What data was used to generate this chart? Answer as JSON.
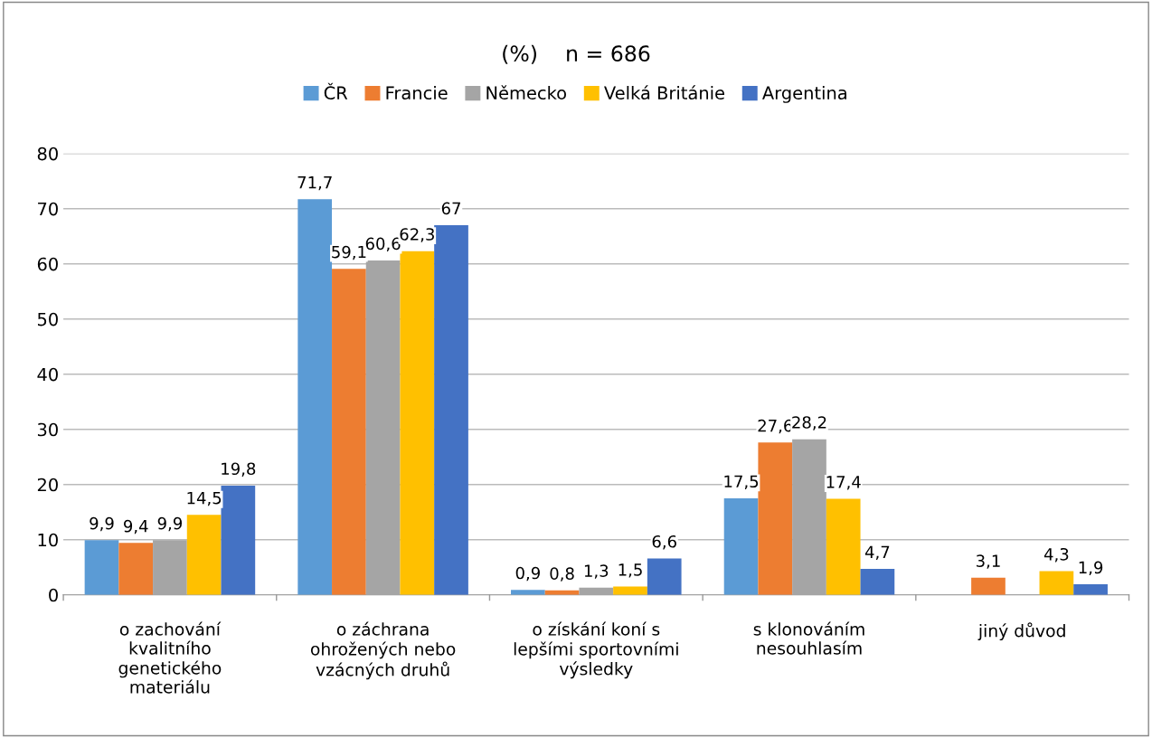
{
  "chart_data": {
    "type": "bar",
    "title": "(%)    n = 686",
    "categories": [
      "o zachování\nkvalitního\ngenetického\nmateriálu",
      "o záchrana\nohrožených nebo\nvzácných druhů",
      "o získání koní s\nlepšími sportovními\nvýsledky",
      "s klonováním\nnesouhlasím",
      "jiný důvod"
    ],
    "series": [
      {
        "name": "ČR",
        "color": "#5b9bd5",
        "values": [
          9.9,
          71.7,
          0.9,
          17.5,
          null
        ],
        "value_labels": [
          "9,9",
          "71,7",
          "0,9",
          "17,5",
          null
        ]
      },
      {
        "name": "Francie",
        "color": "#ed7d31",
        "values": [
          9.4,
          59.1,
          0.8,
          27.6,
          3.1
        ],
        "value_labels": [
          "9,4",
          "59,1",
          "0,8",
          "27,6",
          "3,1"
        ]
      },
      {
        "name": "Německo",
        "color": "#a5a5a5",
        "values": [
          9.9,
          60.6,
          1.3,
          28.2,
          null
        ],
        "value_labels": [
          "9,9",
          "60,6",
          "1,3",
          "28,2",
          null
        ]
      },
      {
        "name": "Velká Británie",
        "color": "#ffc000",
        "values": [
          14.5,
          62.3,
          1.5,
          17.4,
          4.3
        ],
        "value_labels": [
          "14,5",
          "62,3",
          "1,5",
          "17,4",
          "4,3"
        ]
      },
      {
        "name": "Argentina",
        "color": "#4472c4",
        "values": [
          19.8,
          67,
          6.6,
          4.7,
          1.9
        ],
        "value_labels": [
          "19,8",
          "67",
          "6,6",
          "4,7",
          "1,9"
        ]
      }
    ],
    "ylim": [
      0,
      80
    ],
    "yticks": [
      0,
      10,
      20,
      30,
      40,
      50,
      60,
      70,
      80
    ],
    "grid": "y",
    "legend": "top"
  }
}
